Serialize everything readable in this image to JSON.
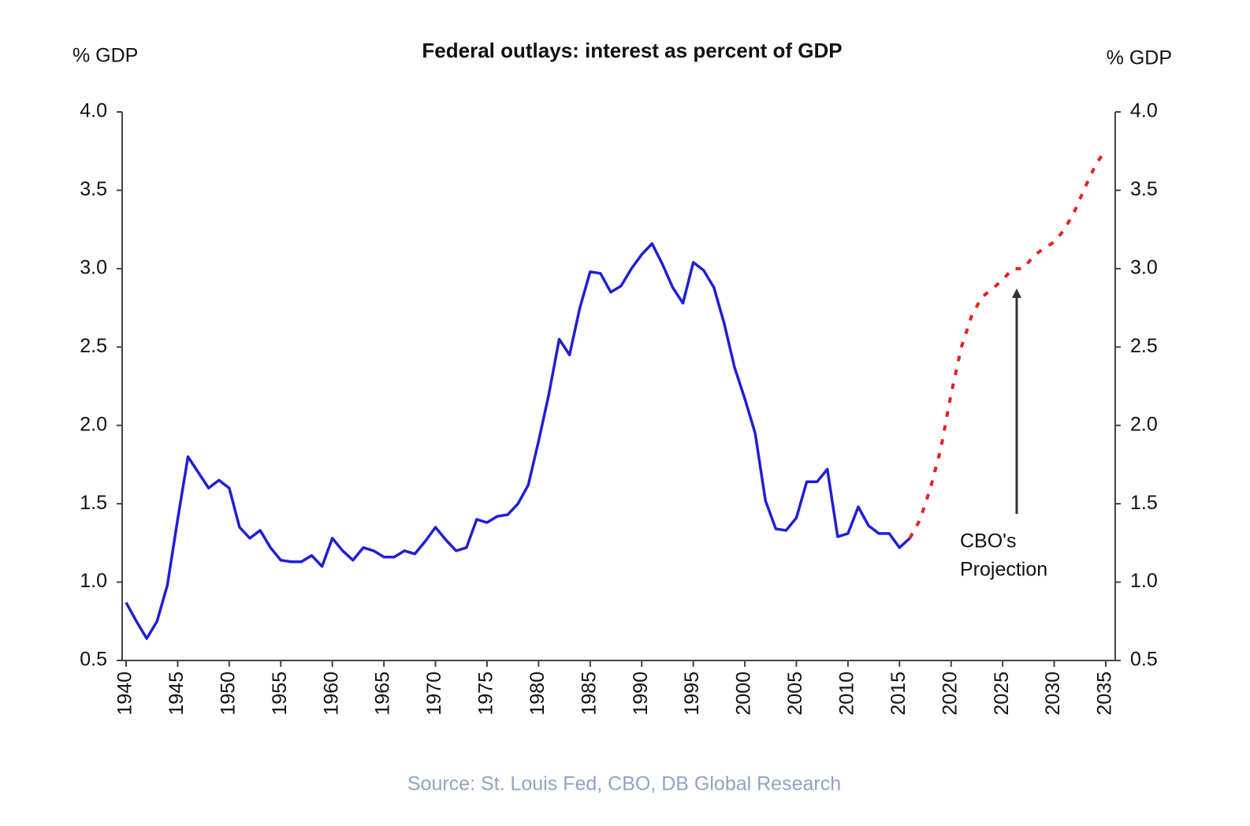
{
  "chart_data": {
    "type": "line",
    "title": "Federal outlays: interest as percent of GDP",
    "y_label": "% GDP",
    "y2_label": "% GDP",
    "source": "Source: St. Louis Fed, CBO, DB Global Research",
    "annotation": [
      "CBO's",
      "Projection"
    ],
    "xlim": [
      1940,
      2035
    ],
    "xticks": [
      1940,
      1945,
      1950,
      1955,
      1960,
      1965,
      1970,
      1975,
      1980,
      1985,
      1990,
      1995,
      2000,
      2005,
      2010,
      2015,
      2020,
      2025,
      2030,
      2035
    ],
    "ylim": [
      0.5,
      4
    ],
    "yticks": [
      {
        "value": 0.5,
        "label": "0.5"
      },
      {
        "value": 1,
        "label": "1.0"
      },
      {
        "value": 1.5,
        "label": "1.5"
      },
      {
        "value": 2,
        "label": "2.0"
      },
      {
        "value": 2.5,
        "label": "2.5"
      },
      {
        "value": 3,
        "label": "3.0"
      },
      {
        "value": 3.5,
        "label": "3.5"
      },
      {
        "value": 4,
        "label": "4.0"
      }
    ],
    "y2lim": [
      0.5,
      4
    ],
    "y2ticks": [
      {
        "value": 0.5,
        "label": "0.5"
      },
      {
        "value": 1,
        "label": "1.0"
      },
      {
        "value": 1.5,
        "label": "1.5"
      },
      {
        "value": 2,
        "label": "2.0"
      },
      {
        "value": 2.5,
        "label": "2.5"
      },
      {
        "value": 3,
        "label": "3.0"
      },
      {
        "value": 3.5,
        "label": "3.5"
      },
      {
        "value": 4,
        "label": "4.0"
      }
    ],
    "series": [
      {
        "color": "#1f1fd6",
        "style": "solid",
        "x": [
          1940,
          1941,
          1942,
          1943,
          1944,
          1945,
          1946,
          1947,
          1948,
          1949,
          1950,
          1951,
          1952,
          1953,
          1954,
          1955,
          1956,
          1957,
          1958,
          1959,
          1960,
          1961,
          1962,
          1963,
          1964,
          1965,
          1966,
          1967,
          1968,
          1969,
          1970,
          1971,
          1972,
          1973,
          1974,
          1975,
          1976,
          1977,
          1978,
          1979,
          1980,
          1981,
          1982,
          1983,
          1984,
          1985,
          1986,
          1987,
          1988,
          1989,
          1990,
          1991,
          1992,
          1993,
          1994,
          1995,
          1996,
          1997,
          1998,
          1999,
          2000,
          2001,
          2002,
          2003,
          2004,
          2005,
          2006,
          2007,
          2008,
          2009,
          2010,
          2011,
          2012,
          2013,
          2014,
          2015,
          2016
        ],
        "values": [
          0.87,
          0.75,
          0.64,
          0.75,
          0.98,
          1.4,
          1.8,
          1.7,
          1.6,
          1.65,
          1.6,
          1.35,
          1.28,
          1.33,
          1.22,
          1.14,
          1.13,
          1.13,
          1.17,
          1.1,
          1.28,
          1.2,
          1.14,
          1.22,
          1.2,
          1.16,
          1.16,
          1.2,
          1.18,
          1.26,
          1.35,
          1.27,
          1.2,
          1.22,
          1.4,
          1.38,
          1.42,
          1.43,
          1.5,
          1.62,
          1.9,
          2.2,
          2.55,
          2.45,
          2.75,
          2.98,
          2.97,
          2.85,
          2.89,
          3.0,
          3.09,
          3.16,
          3.03,
          2.88,
          2.78,
          3.04,
          2.99,
          2.88,
          2.65,
          2.37,
          2.17,
          1.95,
          1.52,
          1.34,
          1.33,
          1.41,
          1.64,
          1.64,
          1.72,
          1.29,
          1.31,
          1.48,
          1.36,
          1.31,
          1.31,
          1.22,
          1.28
        ]
      },
      {
        "color": "#e8201f",
        "style": "dotted",
        "x": [
          2016,
          2017,
          2018,
          2019,
          2020,
          2021,
          2022,
          2023,
          2024,
          2025,
          2026,
          2027,
          2028,
          2029,
          2030,
          2031,
          2032,
          2033,
          2034,
          2035
        ],
        "values": [
          1.28,
          1.4,
          1.6,
          1.85,
          2.2,
          2.5,
          2.7,
          2.82,
          2.87,
          2.93,
          3.0,
          3.0,
          3.08,
          3.13,
          3.17,
          3.25,
          3.37,
          3.52,
          3.66,
          3.76
        ]
      }
    ]
  }
}
